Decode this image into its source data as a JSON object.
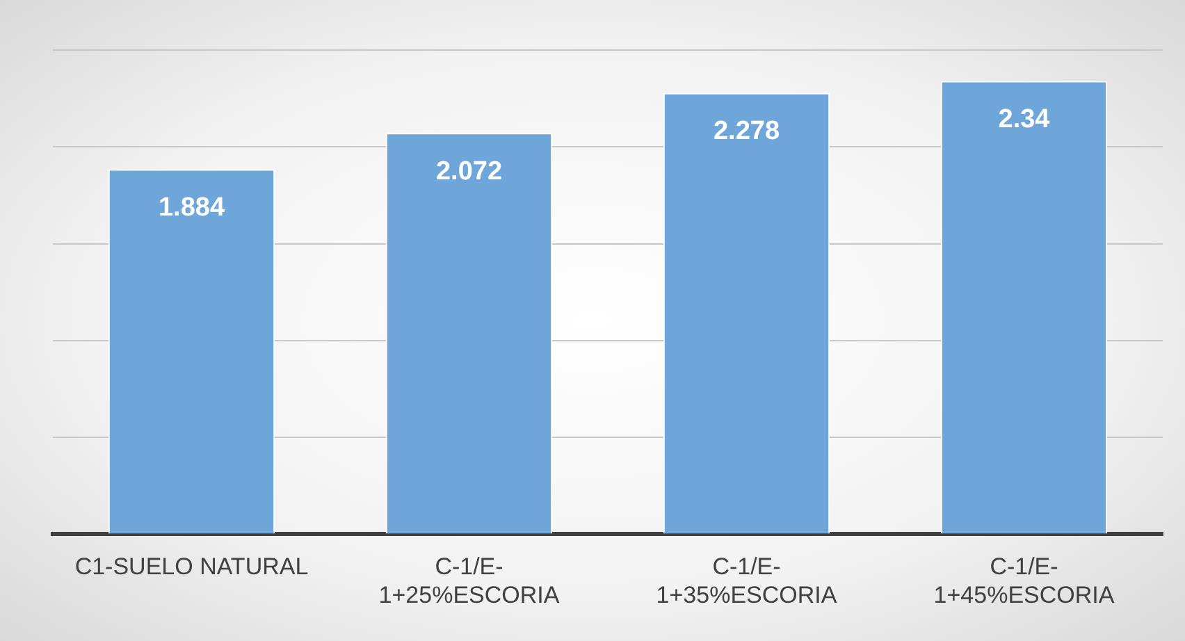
{
  "chart_data": {
    "type": "bar",
    "categories": [
      "C1-SUELO NATURAL",
      "C-1/E-1+25%ESCORIA",
      "C-1/E-1+35%ESCORIA",
      "C-1/E-1+45%ESCORIA"
    ],
    "values": [
      1.884,
      2.072,
      2.278,
      2.34
    ],
    "color": "#6fa6da",
    "ylim": [
      0,
      2.5
    ],
    "yticks": [
      {
        "value": 0,
        "label": null
      },
      {
        "value": 0.5,
        "label": null
      },
      {
        "value": 1,
        "label": null
      },
      {
        "value": 1.5,
        "label": null
      },
      {
        "value": 2,
        "label": null
      },
      {
        "value": 2.5,
        "label": null
      }
    ],
    "grid": "y",
    "tick_labels": "x",
    "data_labels": true,
    "legend": false
  }
}
